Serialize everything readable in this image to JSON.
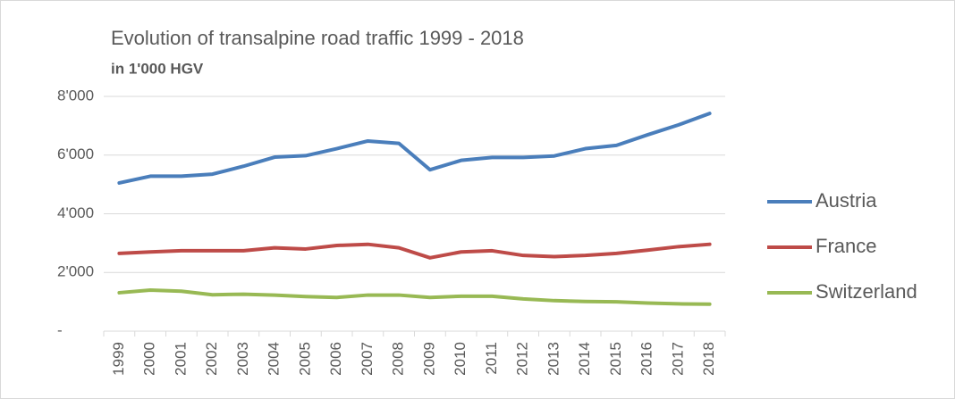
{
  "chart_data": {
    "type": "line",
    "title": "Evolution of transalpine road traffic 1999 - 2018",
    "subtitle": "in 1'000 HGV",
    "categories": [
      "1999",
      "2000",
      "2001",
      "2002",
      "2003",
      "2004",
      "2005",
      "2006",
      "2007",
      "2008",
      "2009",
      "2010",
      "2011",
      "2012",
      "2013",
      "2014",
      "2015",
      "2016",
      "2017",
      "2018"
    ],
    "series": [
      {
        "name": "Austria",
        "color": "#4a7ebb",
        "values": [
          5050,
          5280,
          5280,
          5350,
          5620,
          5930,
          5980,
          6220,
          6480,
          6400,
          5500,
          5820,
          5920,
          5920,
          5970,
          6220,
          6330,
          6690,
          7030,
          7420
        ]
      },
      {
        "name": "France",
        "color": "#be4b48",
        "values": [
          2650,
          2700,
          2740,
          2740,
          2740,
          2840,
          2800,
          2920,
          2960,
          2840,
          2500,
          2700,
          2740,
          2580,
          2540,
          2580,
          2650,
          2760,
          2880,
          2960
        ]
      },
      {
        "name": "Switzerland",
        "color": "#98b954",
        "values": [
          1310,
          1400,
          1360,
          1240,
          1260,
          1230,
          1180,
          1150,
          1230,
          1230,
          1150,
          1190,
          1190,
          1100,
          1040,
          1010,
          1000,
          960,
          930,
          920
        ]
      }
    ],
    "ylim": [
      0,
      8000
    ],
    "yticks": [
      {
        "value": 0,
        "label": "-"
      },
      {
        "value": 2000,
        "label": "2'000"
      },
      {
        "value": 4000,
        "label": "4'000"
      },
      {
        "value": 6000,
        "label": "6'000"
      },
      {
        "value": 8000,
        "label": "8'000"
      }
    ],
    "grid": true,
    "legend": "right"
  }
}
